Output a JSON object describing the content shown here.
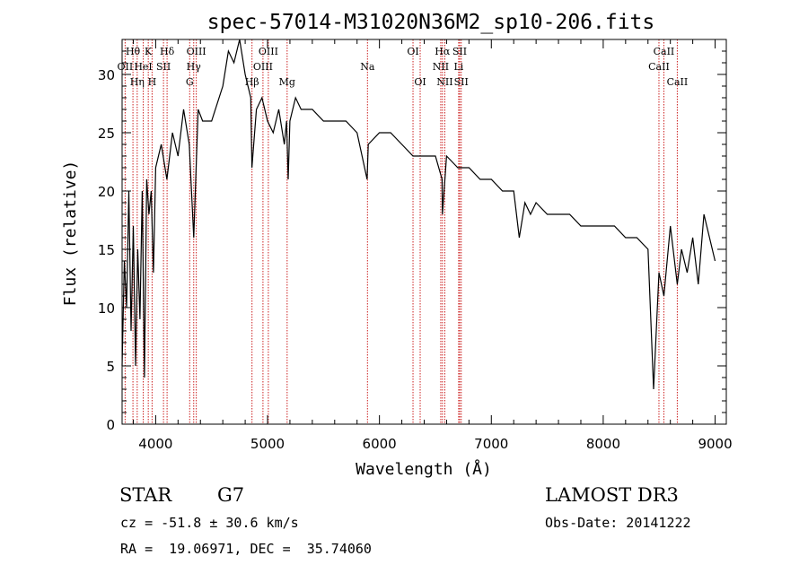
{
  "chart_data": {
    "type": "line",
    "title": "spec-57014-M31020N36M2_sp10-206.fits",
    "xlabel": "Wavelength (Å)",
    "ylabel": "Flux (relative)",
    "xlim": [
      3700,
      9100
    ],
    "ylim": [
      0,
      33
    ],
    "x_ticks": [
      4000,
      5000,
      6000,
      7000,
      8000,
      9000
    ],
    "y_ticks": [
      0,
      5,
      10,
      15,
      20,
      25,
      30
    ],
    "series": [
      {
        "name": "flux",
        "x": [
          3700,
          3720,
          3740,
          3760,
          3780,
          3800,
          3820,
          3840,
          3860,
          3880,
          3900,
          3920,
          3940,
          3960,
          3980,
          4000,
          4050,
          4100,
          4150,
          4200,
          4250,
          4300,
          4340,
          4380,
          4420,
          4500,
          4600,
          4650,
          4700,
          4750,
          4800,
          4850,
          4860,
          4900,
          4950,
          5000,
          5050,
          5100,
          5150,
          5170,
          5184,
          5200,
          5250,
          5300,
          5400,
          5500,
          5600,
          5700,
          5800,
          5890,
          5900,
          6000,
          6100,
          6200,
          6300,
          6400,
          6500,
          6560,
          6563,
          6600,
          6700,
          6800,
          6900,
          7000,
          7100,
          7200,
          7250,
          7300,
          7350,
          7400,
          7500,
          7600,
          7700,
          7800,
          7900,
          8000,
          8100,
          8200,
          8300,
          8400,
          8450,
          8498,
          8542,
          8600,
          8662,
          8700,
          8750,
          8800,
          8850,
          8900,
          8950,
          9000
        ],
        "y": [
          5,
          14,
          10,
          20,
          8,
          17,
          5,
          15,
          9,
          20,
          4,
          21,
          18,
          20,
          13,
          22,
          24,
          21,
          25,
          23,
          27,
          24,
          16,
          27,
          26,
          26,
          29,
          32,
          31,
          33,
          30,
          28,
          22,
          27,
          28,
          26,
          25,
          27,
          24,
          26,
          21,
          26,
          28,
          27,
          27,
          26,
          26,
          26,
          25,
          21,
          24,
          25,
          25,
          24,
          23,
          23,
          23,
          21,
          18,
          23,
          22,
          22,
          21,
          21,
          20,
          20,
          16,
          19,
          18,
          19,
          18,
          18,
          18,
          17,
          17,
          17,
          17,
          16,
          16,
          15,
          3,
          13,
          11,
          17,
          12,
          15,
          13,
          16,
          12,
          18,
          16,
          14
        ]
      }
    ],
    "lines": [
      {
        "name": "Hθ",
        "wl": 3797,
        "row": 0
      },
      {
        "name": "K",
        "wl": 3934,
        "row": 0
      },
      {
        "name": "Hδ",
        "wl": 4102,
        "row": 0
      },
      {
        "name": "OII",
        "wl": 3727,
        "row": 1
      },
      {
        "name": "HeI",
        "wl": 3889,
        "row": 1
      },
      {
        "name": "SII",
        "wl": 4070,
        "row": 1
      },
      {
        "name": "Hη",
        "wl": 3835,
        "row": 2
      },
      {
        "name": "H",
        "wl": 3968,
        "row": 2
      },
      {
        "name": "OIII",
        "wl": 4363,
        "row": 0
      },
      {
        "name": "Hγ",
        "wl": 4340,
        "row": 1
      },
      {
        "name": "G",
        "wl": 4304,
        "row": 2
      },
      {
        "name": "OIII",
        "wl": 5007,
        "row": 0
      },
      {
        "name": "OIII",
        "wl": 4959,
        "row": 1
      },
      {
        "name": "Hβ",
        "wl": 4861,
        "row": 2
      },
      {
        "name": "Mg",
        "wl": 5175,
        "row": 2
      },
      {
        "name": "Na",
        "wl": 5893,
        "row": 1
      },
      {
        "name": "OI",
        "wl": 6300,
        "row": 0
      },
      {
        "name": "OI",
        "wl": 6364,
        "row": 2
      },
      {
        "name": "Hα",
        "wl": 6563,
        "row": 0
      },
      {
        "name": "SII",
        "wl": 6717,
        "row": 0
      },
      {
        "name": "NII",
        "wl": 6548,
        "row": 1
      },
      {
        "name": "Li",
        "wl": 6708,
        "row": 1
      },
      {
        "name": "NII",
        "wl": 6584,
        "row": 2
      },
      {
        "name": "SII",
        "wl": 6731,
        "row": 2
      },
      {
        "name": "CaII",
        "wl": 8542,
        "row": 0
      },
      {
        "name": "CaII",
        "wl": 8498,
        "row": 1
      },
      {
        "name": "CaII",
        "wl": 8662,
        "row": 2
      }
    ]
  },
  "info": {
    "class": "STAR",
    "subclass": "G7",
    "survey": "LAMOST DR3",
    "cz": "cz = -51.8 ± 30.6 km/s",
    "obs_date": "Obs-Date: 20141222",
    "coords": "RA =  19.06971, DEC =  35.74060"
  },
  "colors": {
    "line_marker": "#cc2020",
    "spectrum": "#000000"
  }
}
